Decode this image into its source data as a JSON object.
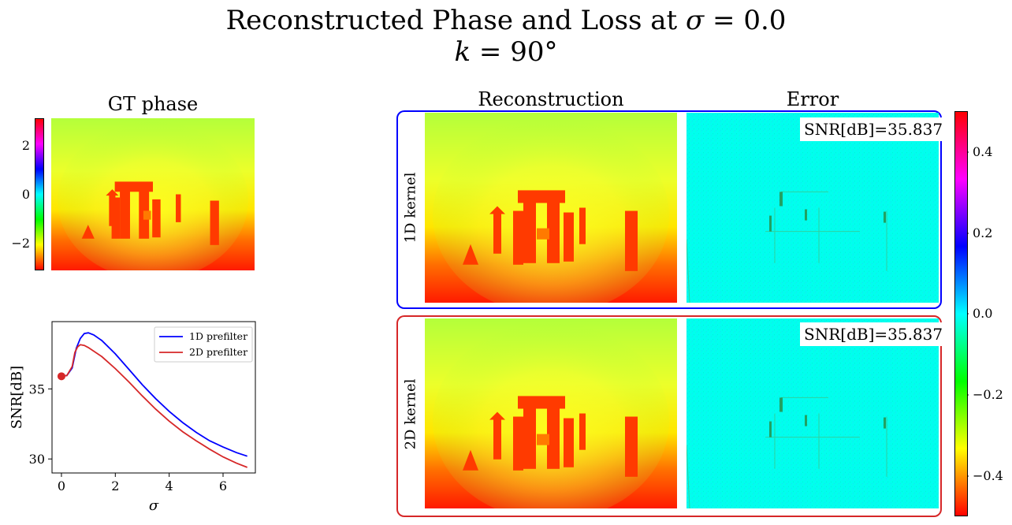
{
  "title": {
    "line1_prefix": "Reconstructed Phase and Loss at ",
    "line1_symbol": "σ",
    "line1_suffix": " = 0.0",
    "line2_symbol": "k",
    "line2_suffix": " = 90°"
  },
  "gt_panel": {
    "title": "GT phase",
    "colorbar_ticks": [
      "2",
      "0",
      "−2"
    ]
  },
  "columns": {
    "reconstruction": "Reconstruction",
    "error": "Error"
  },
  "rows": [
    {
      "label": "1D kernel",
      "snr_text": "SNR[dB]=35.837",
      "box_color": "#0000ff"
    },
    {
      "label": "2D kernel",
      "snr_text": "SNR[dB]=35.837",
      "box_color": "#d62728"
    }
  ],
  "error_colorbar_ticks": [
    "0.4",
    "0.2",
    "0.0",
    "−0.2",
    "−0.4"
  ],
  "chart_data": {
    "type": "line",
    "xlabel": "σ",
    "ylabel": "SNR[dB]",
    "xlim": [
      -0.35,
      7.2
    ],
    "ylim": [
      29,
      39.8
    ],
    "xticks": [
      0,
      2,
      4,
      6
    ],
    "yticks": [
      30,
      35
    ],
    "legend_position": "top-right",
    "grid": false,
    "series": [
      {
        "name": "1D prefilter",
        "color": "#0000ff",
        "x": [
          0,
          0.2,
          0.4,
          0.55,
          0.7,
          0.85,
          1.0,
          1.2,
          1.5,
          2.0,
          2.5,
          3.0,
          3.5,
          4.0,
          4.5,
          5.0,
          5.5,
          6.0,
          6.5,
          6.9
        ],
        "y": [
          35.9,
          35.95,
          36.5,
          37.9,
          38.6,
          38.95,
          39.0,
          38.85,
          38.45,
          37.5,
          36.4,
          35.3,
          34.3,
          33.4,
          32.6,
          31.9,
          31.3,
          30.85,
          30.45,
          30.2
        ]
      },
      {
        "name": "2D prefilter",
        "color": "#d62728",
        "x": [
          0,
          0.2,
          0.4,
          0.5,
          0.6,
          0.7,
          0.85,
          1.0,
          1.5,
          2.0,
          2.5,
          3.0,
          3.5,
          4.0,
          4.5,
          5.0,
          5.5,
          6.0,
          6.5,
          6.9
        ],
        "y": [
          35.9,
          35.95,
          36.6,
          37.6,
          38.0,
          38.15,
          38.1,
          37.95,
          37.3,
          36.45,
          35.5,
          34.5,
          33.55,
          32.7,
          31.95,
          31.3,
          30.7,
          30.15,
          29.7,
          29.4
        ]
      }
    ],
    "marker": {
      "x": 0,
      "y": 35.9,
      "color": "#d62728"
    }
  }
}
